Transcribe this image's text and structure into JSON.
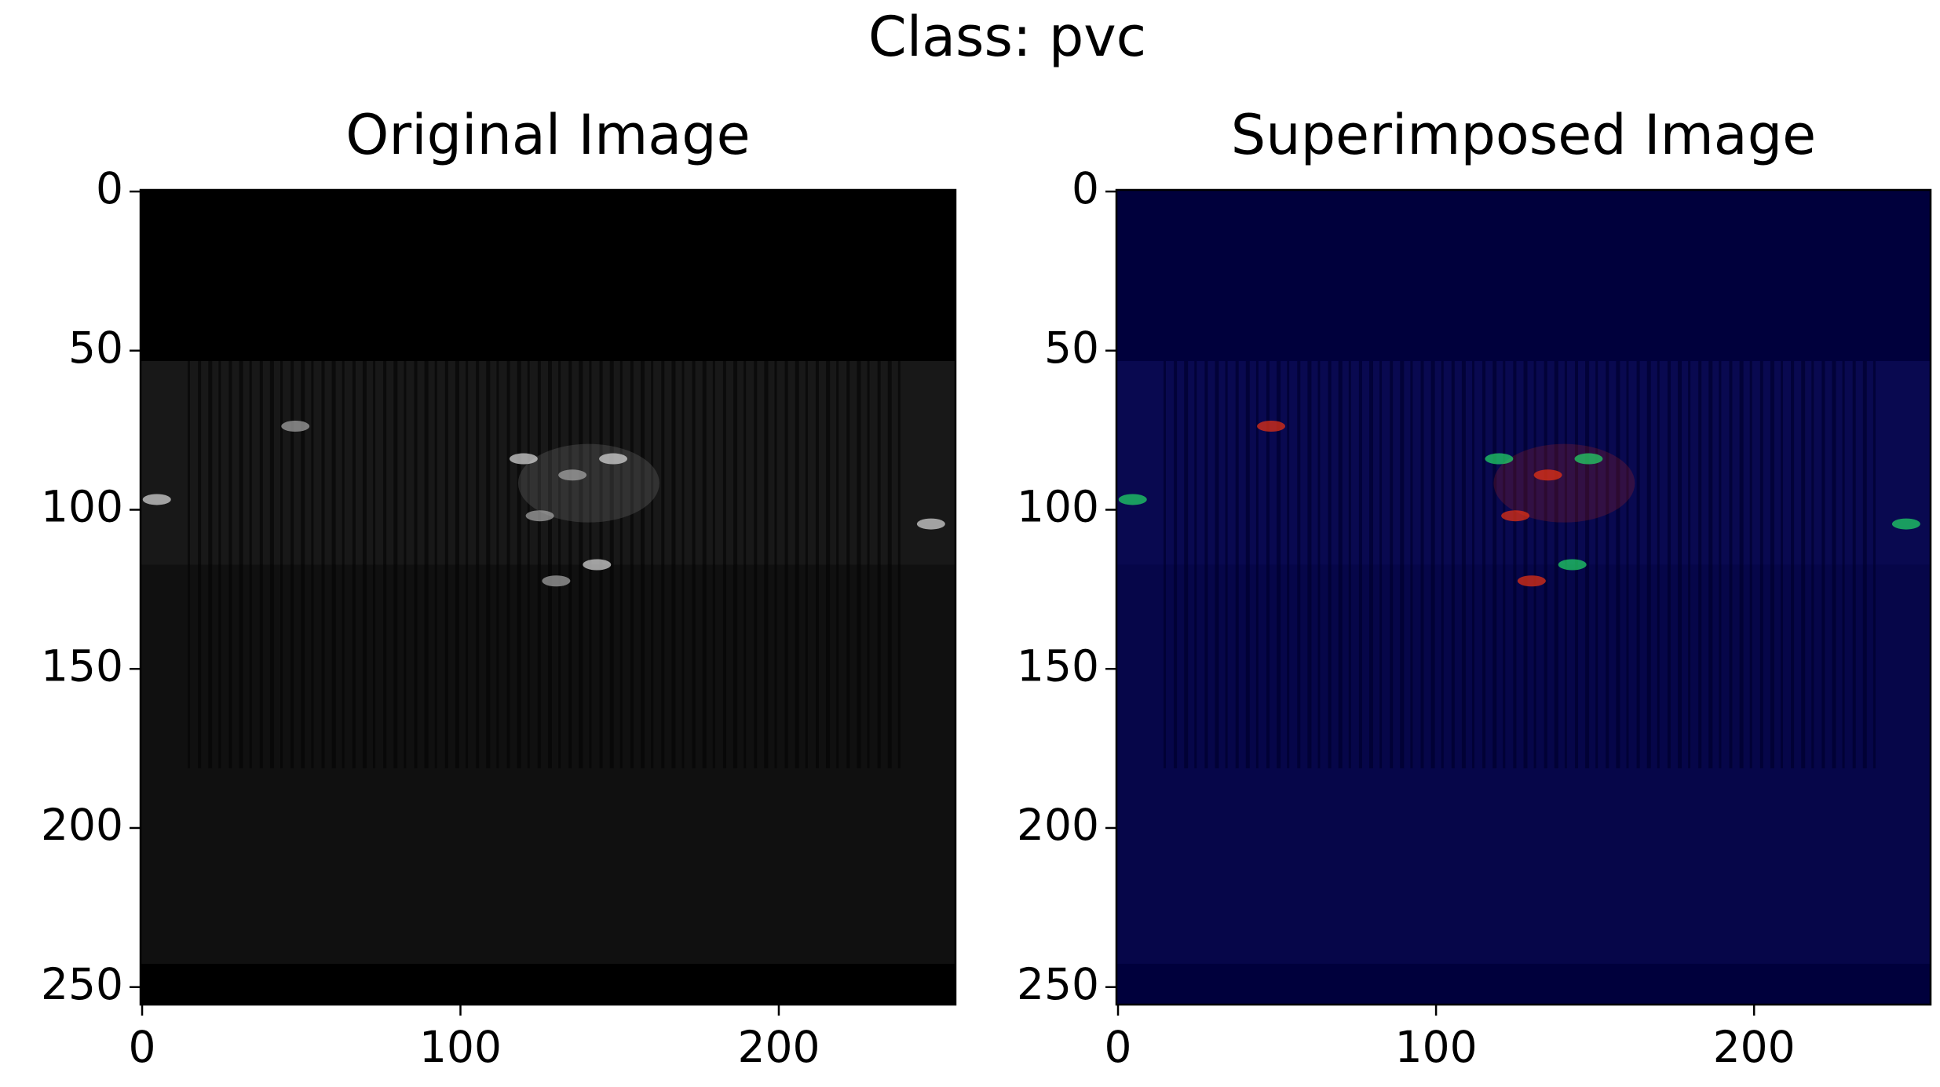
{
  "title": "Class: pvc",
  "chart_data": [
    {
      "type": "image",
      "title": "Original Image",
      "colormap": "gray",
      "xlim": [
        -0.5,
        255.5
      ],
      "ylim": [
        255.5,
        -0.5
      ],
      "xticks": [
        0,
        100,
        200
      ],
      "yticks": [
        0,
        50,
        100,
        150,
        200,
        250
      ]
    },
    {
      "type": "image",
      "title": "Superimposed Image",
      "colormap": "jet",
      "xlim": [
        -0.5,
        255.5
      ],
      "ylim": [
        255.5,
        -0.5
      ],
      "xticks": [
        0,
        100,
        200
      ],
      "yticks": [
        0,
        50,
        100,
        150,
        200,
        250
      ]
    }
  ]
}
